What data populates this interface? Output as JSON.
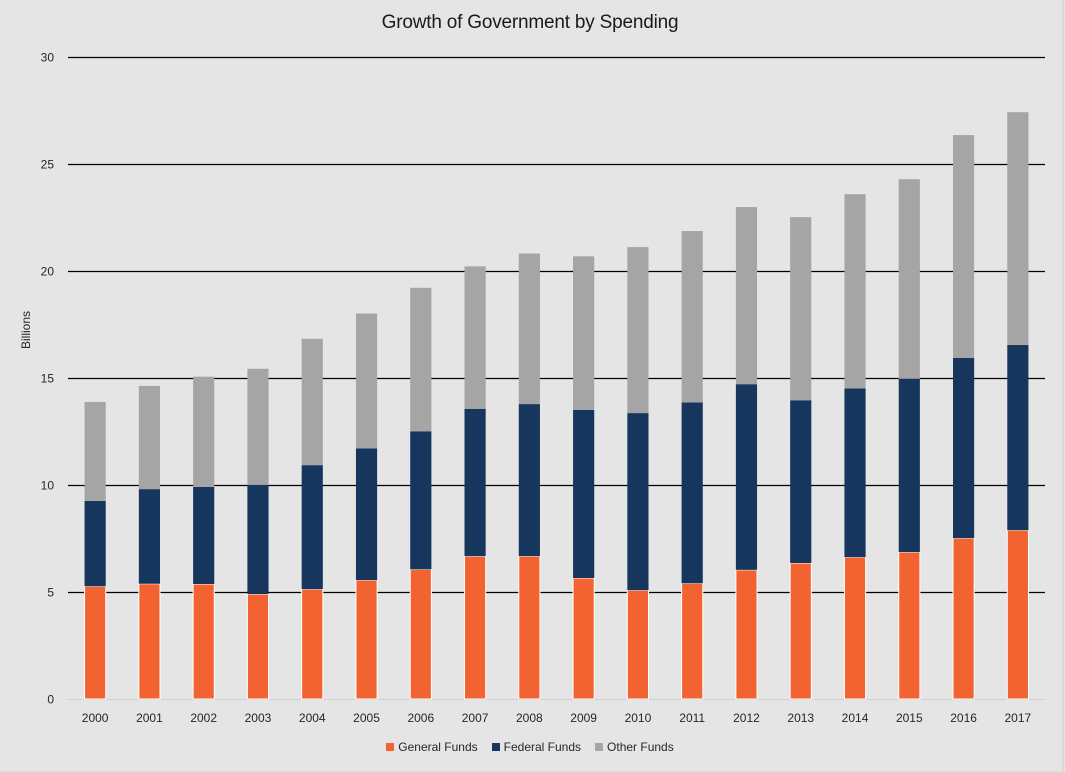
{
  "chart_data": {
    "type": "bar",
    "stacked": true,
    "title": "Growth of Government by Spending",
    "xlabel": "",
    "ylabel": "Billions",
    "ylim": [
      0,
      30
    ],
    "yticks": [
      0,
      5,
      10,
      15,
      20,
      25,
      30
    ],
    "grid": true,
    "legend_position": "bottom",
    "categories": [
      "2000",
      "2001",
      "2002",
      "2003",
      "2004",
      "2005",
      "2006",
      "2007",
      "2008",
      "2009",
      "2010",
      "2011",
      "2012",
      "2013",
      "2014",
      "2015",
      "2016",
      "2017"
    ],
    "series": [
      {
        "name": "General Funds",
        "color": "#f26331",
        "values": [
          5.26,
          5.38,
          5.37,
          4.9,
          5.13,
          5.55,
          6.05,
          6.67,
          6.67,
          5.65,
          5.08,
          5.4,
          6.03,
          6.35,
          6.62,
          6.86,
          7.51,
          7.88
        ]
      },
      {
        "name": "Federal Funds",
        "color": "#17365d",
        "values": [
          3.99,
          4.42,
          4.53,
          5.1,
          5.79,
          6.15,
          6.45,
          6.88,
          7.1,
          7.85,
          8.27,
          8.45,
          8.67,
          7.6,
          7.88,
          8.09,
          8.42,
          8.65
        ]
      },
      {
        "name": "Other Funds",
        "color": "#a5a5a5",
        "values": [
          4.62,
          4.82,
          5.15,
          5.42,
          5.9,
          6.3,
          6.7,
          6.65,
          7.03,
          7.17,
          7.75,
          8.0,
          8.27,
          8.55,
          9.07,
          9.32,
          10.4,
          10.87
        ]
      }
    ]
  }
}
